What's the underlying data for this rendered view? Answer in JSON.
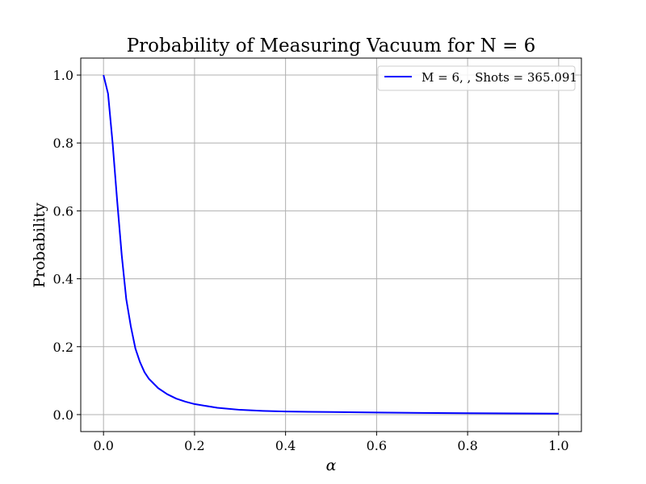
{
  "chart_data": {
    "type": "line",
    "title": "Probability of Measuring Vacuum for N = 6",
    "xlabel": "α",
    "ylabel": "Probability",
    "xlim": [
      -0.05,
      1.05
    ],
    "ylim": [
      -0.05,
      1.05
    ],
    "xticks": [
      0.0,
      0.2,
      0.4,
      0.6,
      0.8,
      1.0
    ],
    "xtick_labels": [
      "0.0",
      "0.2",
      "0.4",
      "0.6",
      "0.8",
      "1.0"
    ],
    "yticks": [
      0.0,
      0.2,
      0.4,
      0.6,
      0.8,
      1.0
    ],
    "ytick_labels": [
      "0.0",
      "0.2",
      "0.4",
      "0.6",
      "0.8",
      "1.0"
    ],
    "grid": true,
    "legend_position": "top-right",
    "series": [
      {
        "name": "M =  6, , Shots = 365.091",
        "color": "#0000ff",
        "x": [
          0.0,
          0.01,
          0.02,
          0.03,
          0.04,
          0.05,
          0.06,
          0.07,
          0.08,
          0.09,
          0.1,
          0.12,
          0.14,
          0.16,
          0.18,
          0.2,
          0.25,
          0.3,
          0.35,
          0.4,
          0.5,
          0.6,
          0.7,
          0.8,
          0.9,
          1.0
        ],
        "y": [
          1.0,
          0.945,
          0.8,
          0.63,
          0.47,
          0.34,
          0.26,
          0.195,
          0.155,
          0.125,
          0.105,
          0.078,
          0.06,
          0.047,
          0.038,
          0.031,
          0.02,
          0.014,
          0.011,
          0.009,
          0.0075,
          0.006,
          0.005,
          0.0042,
          0.0036,
          0.003
        ]
      }
    ]
  }
}
